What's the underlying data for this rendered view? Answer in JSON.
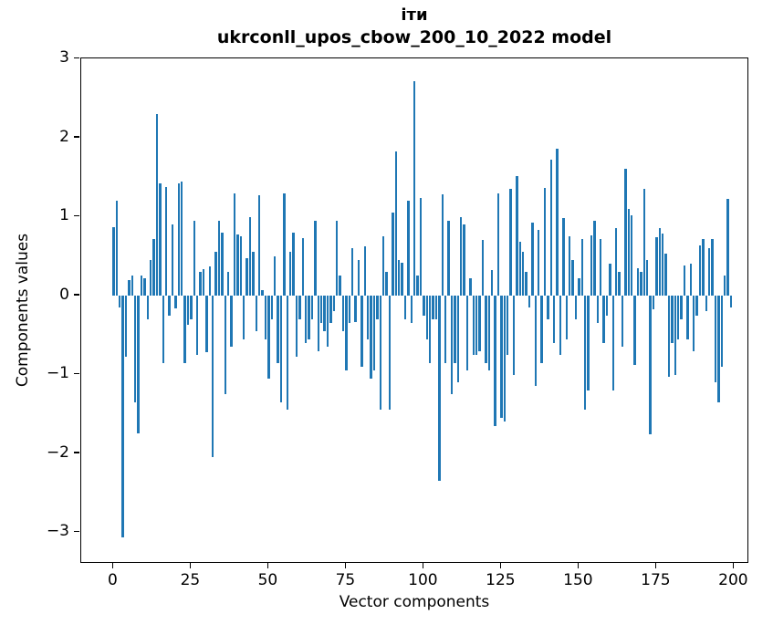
{
  "title": {
    "line1": "іти",
    "line2": "ukrconll_upos_cbow_200_10_2022 model"
  },
  "chart_data": {
    "type": "bar",
    "title": "іти — ukrconll_upos_cbow_200_10_2022 model",
    "xlabel": "Vector components",
    "ylabel": "Components values",
    "bar_color": "#1f77b4",
    "axis_color": "#000000",
    "background": "#ffffff",
    "grid": false,
    "legend": false,
    "x_is_component_index": true,
    "x_ticks": [
      0,
      25,
      50,
      75,
      100,
      125,
      150,
      175,
      200
    ],
    "y_ticks": [
      3,
      2,
      1,
      0,
      -1,
      -2,
      -3
    ],
    "xlim": [
      -10.5,
      205
    ],
    "ylim": [
      -3.42,
      3.0
    ],
    "values": [
      0.87,
      1.2,
      -0.15,
      -3.06,
      -0.78,
      0.2,
      0.26,
      -1.35,
      -1.75,
      0.25,
      0.22,
      -0.3,
      0.45,
      0.72,
      2.3,
      1.42,
      -0.85,
      1.38,
      -0.25,
      0.9,
      -0.16,
      1.42,
      1.45,
      -0.85,
      -0.37,
      -0.3,
      0.95,
      -0.75,
      0.3,
      0.33,
      -0.72,
      0.37,
      -2.05,
      0.55,
      0.95,
      0.8,
      -1.25,
      0.3,
      -0.65,
      1.3,
      0.78,
      0.75,
      -0.55,
      0.47,
      1.0,
      0.55,
      -0.45,
      1.27,
      0.07,
      -0.55,
      -1.05,
      -0.3,
      0.5,
      -0.85,
      -1.35,
      1.3,
      -1.45,
      0.55,
      0.8,
      -0.77,
      -0.3,
      0.73,
      -0.6,
      -0.55,
      -0.3,
      0.95,
      -0.7,
      -0.35,
      -0.45,
      -0.65,
      -0.35,
      -0.2,
      0.95,
      0.25,
      -0.45,
      -0.95,
      -0.35,
      0.6,
      -0.33,
      0.45,
      -0.9,
      0.62,
      -0.55,
      -1.05,
      -0.95,
      -0.3,
      -1.45,
      0.75,
      0.3,
      -1.45,
      1.05,
      1.83,
      0.45,
      0.42,
      -0.3,
      1.2,
      -0.35,
      2.72,
      0.25,
      1.24,
      -0.25,
      -0.55,
      -0.85,
      -0.3,
      -0.3,
      -2.35,
      1.28,
      -0.85,
      0.95,
      -1.25,
      -0.85,
      -1.1,
      1.0,
      0.9,
      -0.95,
      0.22,
      -0.75,
      -0.75,
      -0.7,
      0.7,
      -0.85,
      -0.95,
      0.32,
      -1.65,
      1.29,
      -1.55,
      -1.6,
      -0.75,
      1.35,
      -1.0,
      1.52,
      0.68,
      0.55,
      0.3,
      -0.15,
      0.93,
      -1.15,
      0.83,
      -0.85,
      1.36,
      -0.3,
      1.72,
      -0.6,
      1.86,
      -0.75,
      0.98,
      -0.55,
      0.75,
      0.45,
      -0.3,
      0.22,
      0.72,
      -1.45,
      -1.2,
      0.76,
      0.95,
      -0.35,
      0.72,
      -0.6,
      -0.25,
      0.4,
      -1.2,
      0.85,
      0.3,
      -0.65,
      1.61,
      1.1,
      1.02,
      -0.88,
      0.35,
      0.3,
      1.35,
      0.45,
      -1.76,
      -0.17,
      0.74,
      0.85,
      0.79,
      0.53,
      -1.03,
      -0.6,
      -1.0,
      -0.55,
      -0.3,
      0.38,
      -0.55,
      0.4,
      -0.7,
      -0.25,
      0.64,
      0.72,
      -0.2,
      0.6,
      0.72,
      -1.1,
      -1.35,
      -0.9,
      0.25,
      1.22,
      -0.15
    ]
  }
}
